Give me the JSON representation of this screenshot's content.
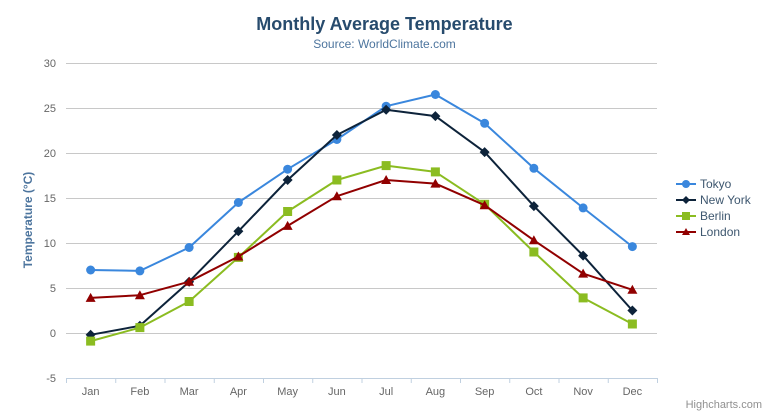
{
  "chart_data": {
    "type": "line",
    "title": "Monthly Average Temperature",
    "subtitle": "Source: WorldClimate.com",
    "xlabel": "",
    "ylabel": "Temperature (°C)",
    "categories": [
      "Jan",
      "Feb",
      "Mar",
      "Apr",
      "May",
      "Jun",
      "Jul",
      "Aug",
      "Sep",
      "Oct",
      "Nov",
      "Dec"
    ],
    "ylim": [
      -5,
      30
    ],
    "yticks": [
      -5,
      0,
      5,
      10,
      15,
      20,
      25,
      30
    ],
    "grid": true,
    "legend_position": "right",
    "series": [
      {
        "name": "Tokyo",
        "color": "#3a87dd",
        "marker": "circle",
        "values": [
          7.0,
          6.9,
          9.5,
          14.5,
          18.2,
          21.5,
          25.2,
          26.5,
          23.3,
          18.3,
          13.9,
          9.6
        ]
      },
      {
        "name": "New York",
        "color": "#0d233a",
        "marker": "diamond",
        "values": [
          -0.2,
          0.8,
          5.7,
          11.3,
          17.0,
          22.0,
          24.8,
          24.1,
          20.1,
          14.1,
          8.6,
          2.5
        ]
      },
      {
        "name": "Berlin",
        "color": "#8bbc21",
        "marker": "square",
        "values": [
          -0.9,
          0.6,
          3.5,
          8.4,
          13.5,
          17.0,
          18.6,
          17.9,
          14.3,
          9.0,
          3.9,
          1.0
        ]
      },
      {
        "name": "London",
        "color": "#910000",
        "marker": "triangle",
        "values": [
          3.9,
          4.2,
          5.7,
          8.5,
          11.9,
          15.2,
          17.0,
          16.6,
          14.2,
          10.3,
          6.6,
          4.8
        ]
      }
    ]
  },
  "colors": {
    "title": "#274b6d",
    "subtitle": "#4d759e",
    "axis_label": "#666666",
    "grid_line": "#c8c8c8",
    "axis_line": "#c0d0e0",
    "legend_text": "#3e576f",
    "credits_text": "#909090"
  },
  "credits": {
    "label": "Highcharts.com"
  },
  "icons": {
    "context_menu": "hamburger-icon"
  }
}
